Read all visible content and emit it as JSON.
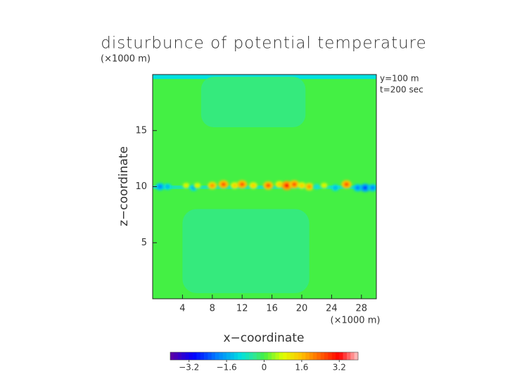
{
  "chart_data": {
    "type": "heatmap",
    "title": "disturbunce of potential temperature",
    "y_unit": "(×1000 m)",
    "x_unit": "(×1000 m)",
    "annotations": [
      "y=100 m",
      "t=200 sec"
    ],
    "xlabel": "x−coordinate",
    "ylabel": "z−coordinate",
    "xlim": [
      0,
      30
    ],
    "ylim": [
      0,
      20
    ],
    "xticks": [
      4,
      8,
      12,
      16,
      20,
      24,
      28
    ],
    "yticks": [
      5,
      10,
      15
    ],
    "background_value": 0,
    "regions": [
      {
        "xlim": [
          0,
          30
        ],
        "zlim": [
          19.6,
          20
        ],
        "value": -1
      },
      {
        "xlim": [
          6.5,
          20.5
        ],
        "zlim": [
          15.3,
          19.8
        ],
        "value": -0.3
      },
      {
        "xlim": [
          4,
          21
        ],
        "zlim": [
          0.5,
          8
        ],
        "value": -0.3
      },
      {
        "xlim": [
          0,
          30
        ],
        "zlim": [
          9.8,
          10.1
        ],
        "value": -0.6
      }
    ],
    "anomalies": {
      "x": [
        1,
        2,
        4.5,
        5.5,
        6,
        8,
        9.5,
        11,
        12,
        13.5,
        15.5,
        17,
        18,
        19,
        20,
        21,
        22,
        23,
        24.5,
        26,
        27.5,
        28.5,
        29.5
      ],
      "z": [
        10,
        10,
        10.1,
        9.9,
        10.1,
        10.1,
        10.2,
        10.1,
        10.2,
        10.1,
        10.1,
        10.2,
        10.1,
        10.2,
        10.1,
        10,
        10,
        10.1,
        9.9,
        10.2,
        9.9,
        9.9,
        9.9
      ],
      "values": [
        -2,
        -1.5,
        1,
        -1.5,
        1,
        2,
        2.5,
        1.5,
        2.5,
        1.5,
        2.5,
        1.5,
        3,
        2.5,
        1.5,
        2,
        -1,
        1,
        -1.5,
        2.5,
        -2,
        -2.5,
        -2
      ]
    },
    "colorbar": {
      "lim": [
        -4,
        4
      ],
      "ticks": [
        {
          "value": -3.2,
          "label": "−3.2"
        },
        {
          "value": -1.6,
          "label": "−1.6"
        },
        0,
        1.6,
        3.2
      ],
      "stops": [
        [
          -4,
          "#6000a0"
        ],
        [
          -3,
          "#0000ff"
        ],
        [
          -2,
          "#0080ff"
        ],
        [
          -1,
          "#00e0e0"
        ],
        [
          -0.4,
          "#30e890"
        ],
        [
          0,
          "#44f044"
        ],
        [
          0.8,
          "#e0ff00"
        ],
        [
          1.6,
          "#ffc000"
        ],
        [
          2.4,
          "#ff6000"
        ],
        [
          3.2,
          "#ff0000"
        ],
        [
          4,
          "#ffc8c8"
        ]
      ]
    }
  }
}
